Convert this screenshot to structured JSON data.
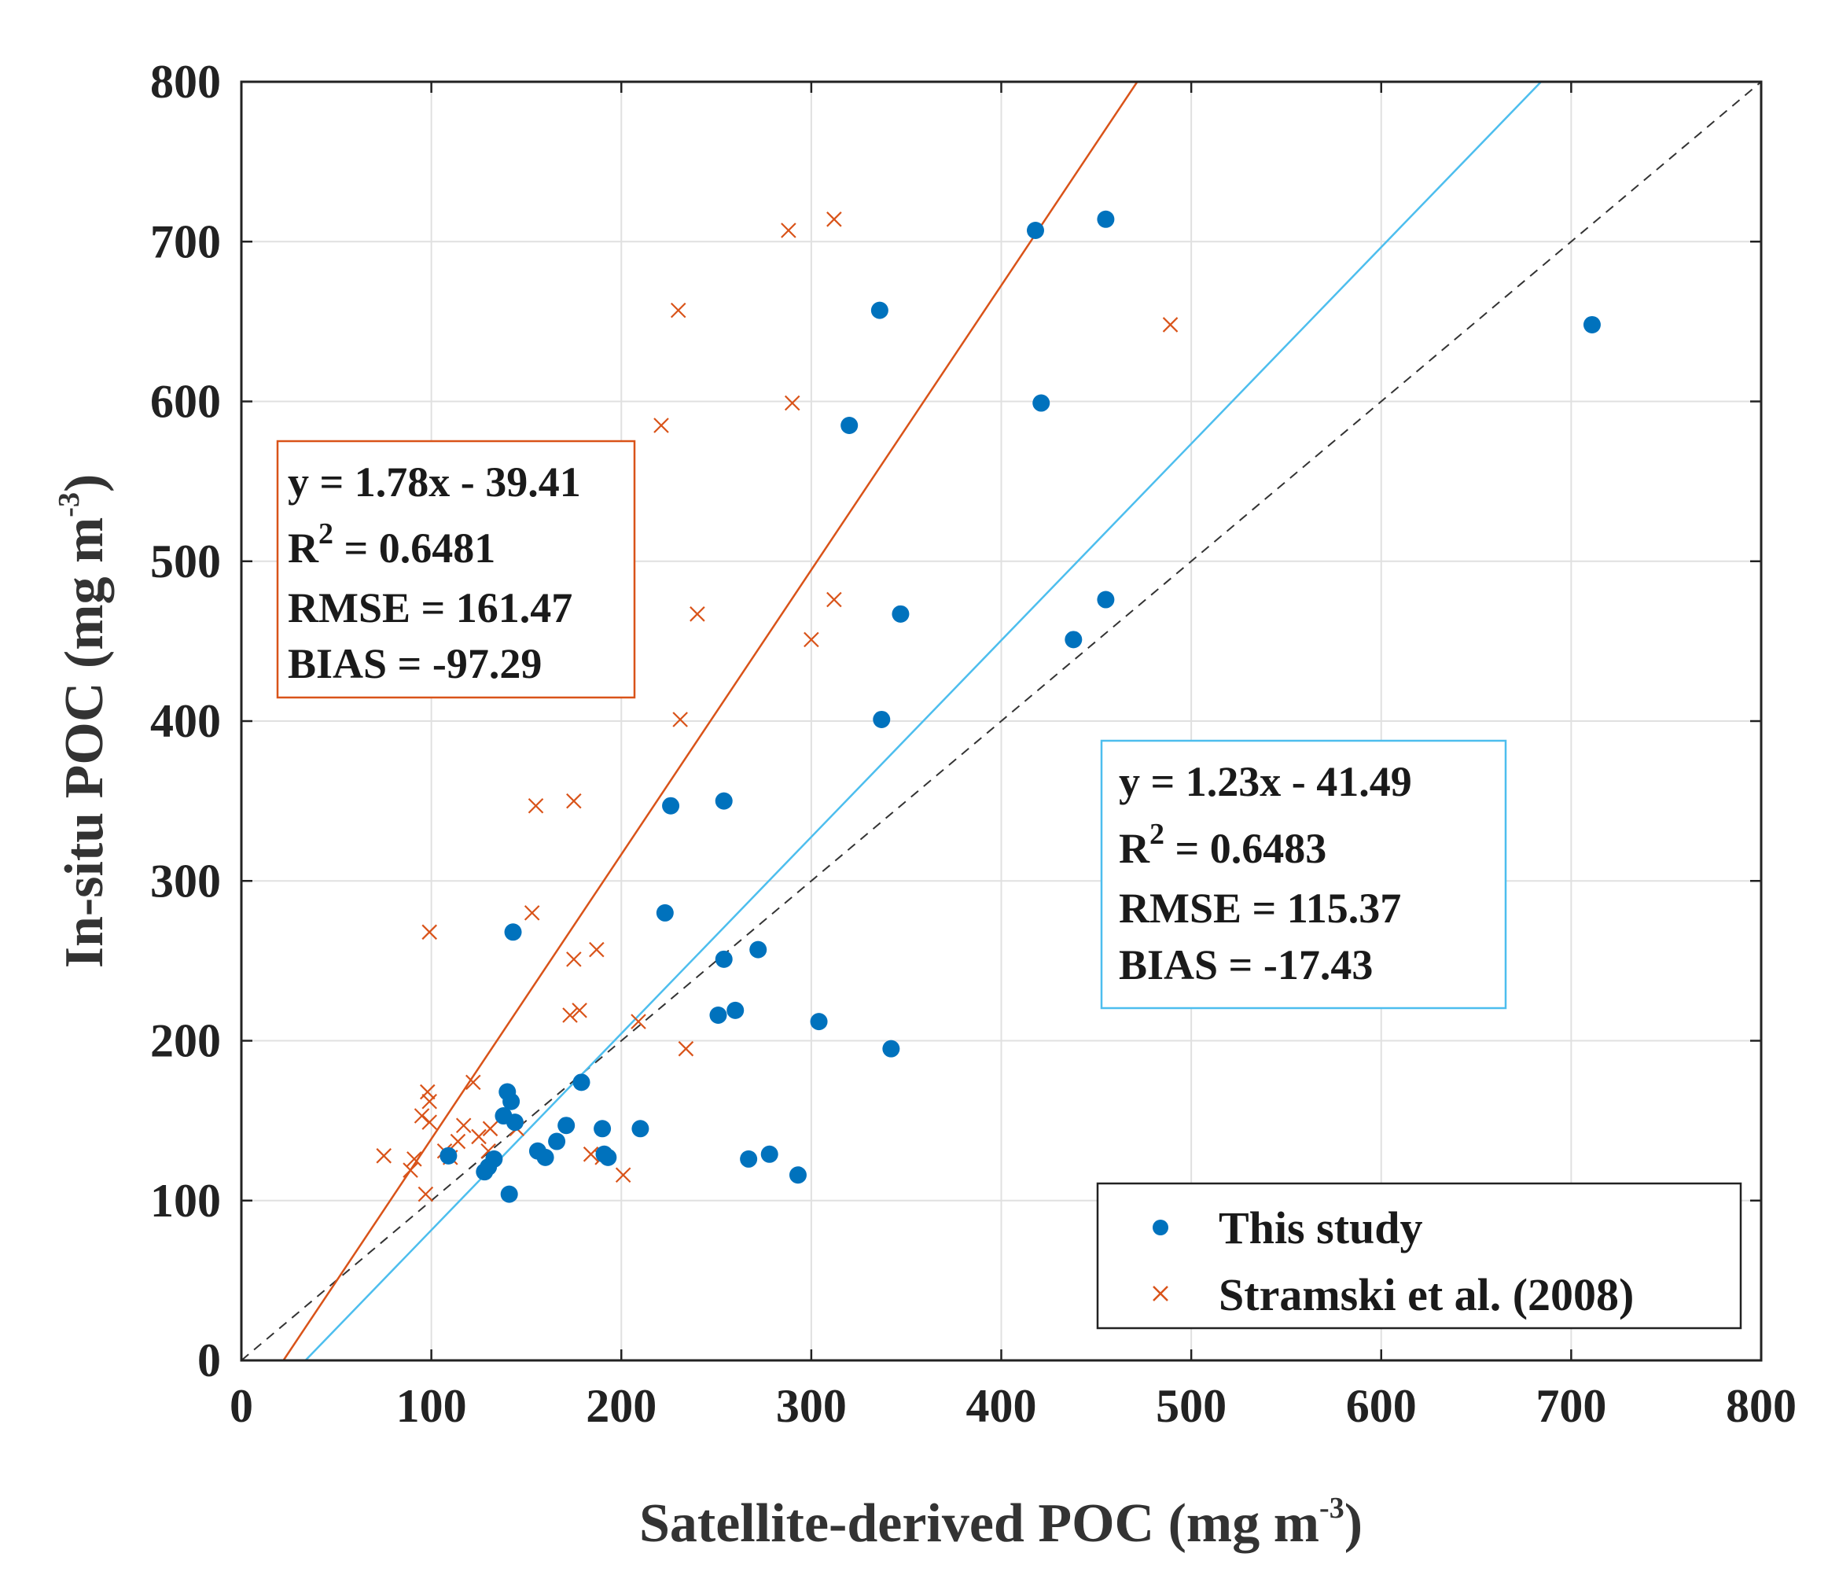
{
  "chart_data": {
    "type": "scatter",
    "xlabel": "Satellite-derived POC (mg m",
    "xlabel_sup": "-3",
    "xlabel_end": ")",
    "ylabel": "In-situ POC (mg m",
    "ylabel_sup": "-3",
    "ylabel_end": ")",
    "xlim": [
      0,
      800
    ],
    "ylim": [
      0,
      800
    ],
    "xticks": [
      0,
      100,
      200,
      300,
      400,
      500,
      600,
      700,
      800
    ],
    "yticks": [
      0,
      100,
      200,
      300,
      400,
      500,
      600,
      700,
      800
    ],
    "grid": true,
    "legend_position": "bottom-right",
    "colors": {
      "this_study": "#0072BD",
      "stramski": "#D95319",
      "one_to_one": "#333333"
    },
    "series": [
      {
        "name": "This study",
        "marker": "dot",
        "points": [
          [
            455,
            714
          ],
          [
            418,
            707
          ],
          [
            336,
            657
          ],
          [
            711,
            648
          ],
          [
            421,
            599
          ],
          [
            320,
            585
          ],
          [
            347,
            467
          ],
          [
            455,
            476
          ],
          [
            438,
            451
          ],
          [
            337,
            401
          ],
          [
            226,
            347
          ],
          [
            254,
            350
          ],
          [
            223,
            280
          ],
          [
            143,
            268
          ],
          [
            272,
            257
          ],
          [
            254,
            251
          ],
          [
            260,
            219
          ],
          [
            251,
            216
          ],
          [
            304,
            212
          ],
          [
            342,
            195
          ],
          [
            179,
            174
          ],
          [
            140,
            168
          ],
          [
            142,
            162
          ],
          [
            138,
            153
          ],
          [
            144,
            149
          ],
          [
            171,
            147
          ],
          [
            190,
            145
          ],
          [
            210,
            145
          ],
          [
            166,
            137
          ],
          [
            156,
            131
          ],
          [
            160,
            127
          ],
          [
            191,
            129
          ],
          [
            193,
            127
          ],
          [
            278,
            129
          ],
          [
            267,
            126
          ],
          [
            293,
            116
          ],
          [
            109,
            128
          ],
          [
            133,
            126
          ],
          [
            130,
            121
          ],
          [
            128,
            118
          ],
          [
            141,
            104
          ]
        ]
      },
      {
        "name": "Stramski et al. (2008)",
        "marker": "x",
        "points": [
          [
            312,
            714
          ],
          [
            288,
            707
          ],
          [
            230,
            657
          ],
          [
            489,
            648
          ],
          [
            290,
            599
          ],
          [
            221,
            585
          ],
          [
            240,
            467
          ],
          [
            312,
            476
          ],
          [
            300,
            451
          ],
          [
            231,
            401
          ],
          [
            155,
            347
          ],
          [
            175,
            350
          ],
          [
            153,
            280
          ],
          [
            99,
            268
          ],
          [
            187,
            257
          ],
          [
            175,
            251
          ],
          [
            178,
            219
          ],
          [
            173,
            216
          ],
          [
            209,
            212
          ],
          [
            234,
            195
          ],
          [
            122,
            174
          ],
          [
            98,
            168
          ],
          [
            99,
            162
          ],
          [
            95,
            153
          ],
          [
            99,
            149
          ],
          [
            117,
            147
          ],
          [
            131,
            145
          ],
          [
            145,
            145
          ],
          [
            114,
            137
          ],
          [
            107,
            131
          ],
          [
            110,
            127
          ],
          [
            184,
            129
          ],
          [
            190,
            127
          ],
          [
            75,
            128
          ],
          [
            91,
            126
          ],
          [
            201,
            116
          ],
          [
            89,
            119
          ],
          [
            97,
            104
          ],
          [
            130,
            131
          ],
          [
            125,
            140
          ]
        ]
      }
    ],
    "fit_lines": [
      {
        "name": "Stramski fit",
        "slope": 1.78,
        "intercept": -39.41
      },
      {
        "name": "This study fit",
        "slope": 1.23,
        "intercept": -41.49
      }
    ],
    "one_to_one": true,
    "stat_boxes": {
      "stramski": {
        "eq": "y = 1.78x - 39.41",
        "r2_prefix": "R",
        "r2_sup": "2",
        "r2_value": " = 0.6481",
        "rmse": "RMSE = 161.47",
        "bias": "BIAS = -97.29"
      },
      "this_study": {
        "eq": "y = 1.23x - 41.49",
        "r2_prefix": "R",
        "r2_sup": "2",
        "r2_value": " = 0.6483",
        "rmse": "RMSE = 115.37",
        "bias": "BIAS = -17.43"
      }
    },
    "legend": {
      "this_study": "This study",
      "stramski": "Stramski et al. (2008)"
    }
  }
}
